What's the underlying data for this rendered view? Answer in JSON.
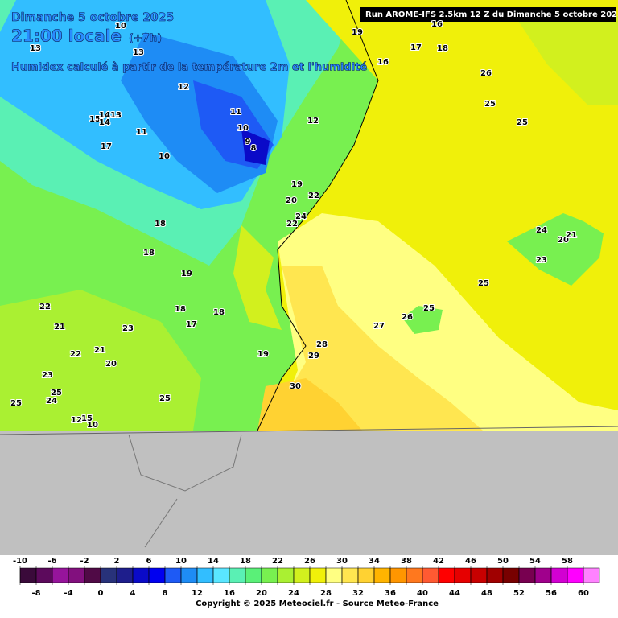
{
  "header": {
    "date": "Dimanche 5 octobre 2025",
    "time": "21:00 locale",
    "offset": "(+7h)",
    "description": "Humidex calculé à partir de la température 2m et l'humidité",
    "run": "Run AROME-IFS 2.5km 12 Z du Dimanche 5 octobre 2025"
  },
  "contour_labels": [
    10,
    13,
    13,
    12,
    11,
    15,
    14,
    13,
    11,
    10,
    9,
    8,
    10,
    17,
    12,
    19,
    20,
    22,
    24,
    22,
    18,
    18,
    19,
    18,
    18,
    17,
    23,
    22,
    21,
    22,
    21,
    20,
    23,
    25,
    24,
    25,
    25,
    19,
    28,
    29,
    30,
    19,
    16,
    17,
    18,
    16,
    26,
    25,
    25,
    25,
    27,
    26,
    25,
    24,
    20,
    21,
    23,
    14,
    12,
    15,
    10
  ],
  "legend": {
    "ticks": [
      -10,
      -8,
      -6,
      -4,
      -2,
      0,
      2,
      4,
      6,
      8,
      10,
      12,
      14,
      16,
      18,
      20,
      22,
      24,
      26,
      28,
      30,
      32,
      34,
      36,
      38,
      40,
      42,
      44,
      46,
      48,
      50,
      52,
      54,
      56,
      58,
      60
    ],
    "colors": [
      "#3a0a3a",
      "#5c0a5c",
      "#96149b",
      "#82107e",
      "#500a46",
      "#28327a",
      "#1e1e8c",
      "#0a0ac8",
      "#0000f0",
      "#1e5af5",
      "#1e8cf5",
      "#32beff",
      "#5ae6ff",
      "#5af0b4",
      "#5af078",
      "#78f050",
      "#aaf032",
      "#d2f01e",
      "#f0f00a",
      "#ffff82",
      "#ffe650",
      "#ffd232",
      "#ffb400",
      "#ff9600",
      "#ff781e",
      "#ff5a32",
      "#ff0000",
      "#e60000",
      "#c80000",
      "#a00000",
      "#780000",
      "#780050",
      "#a0008c",
      "#d200d2",
      "#ff00ff",
      "#ff82ff"
    ]
  },
  "footer": {
    "copyright": "Copyright © 2025 Meteociel.fr - Source Meteo-France"
  }
}
